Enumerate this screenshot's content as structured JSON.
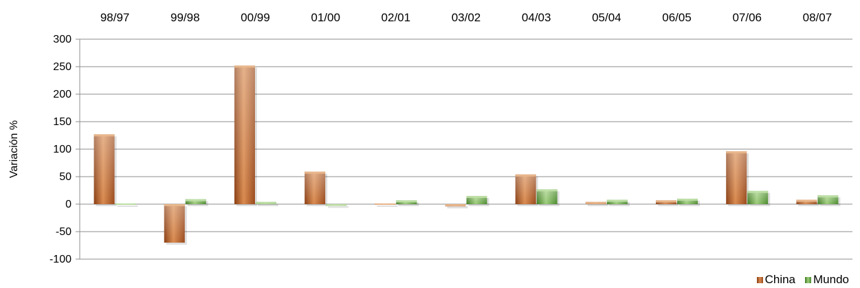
{
  "chart_data": {
    "type": "bar",
    "categories": [
      "98/97",
      "99/98",
      "00/99",
      "01/00",
      "02/01",
      "03/02",
      "04/03",
      "05/04",
      "06/05",
      "07/06",
      "08/07"
    ],
    "series": [
      {
        "name": "China",
        "values": [
          127,
          -70,
          252,
          59,
          0,
          -4,
          54,
          4,
          7,
          96,
          8
        ],
        "color": "#b05a25"
      },
      {
        "name": "Mundo",
        "values": [
          2,
          9,
          4,
          -3,
          7,
          15,
          27,
          8,
          10,
          24,
          16
        ],
        "color": "#5c9a3a"
      }
    ],
    "ylabel": "Variación %",
    "ylim": [
      -100,
      300
    ],
    "yticks": [
      300,
      250,
      200,
      150,
      100,
      50,
      0,
      -50,
      -100
    ],
    "grid": true,
    "legend": "bottom-right"
  }
}
